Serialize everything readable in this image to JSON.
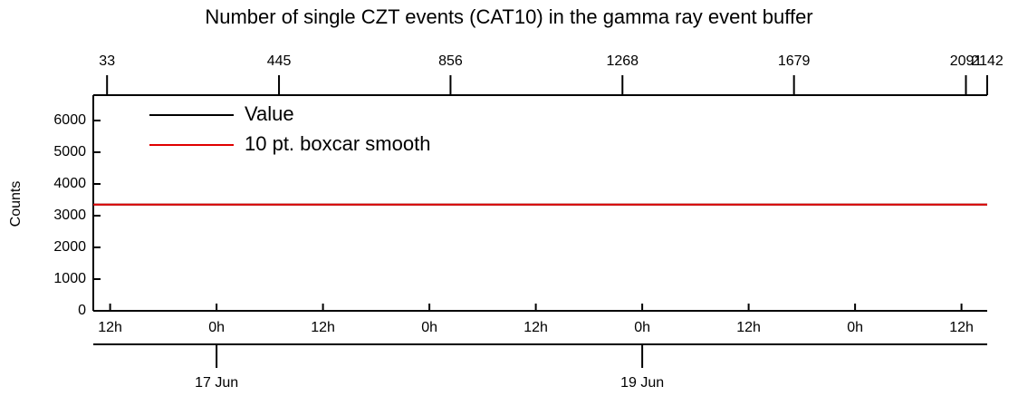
{
  "chart_data": {
    "type": "line",
    "title": "Number of single CZT events (CAT10) in the gamma ray event buffer",
    "ylabel": "Counts",
    "ylim": [
      0,
      6800
    ],
    "yticks": [
      0,
      1000,
      2000,
      3000,
      4000,
      5000,
      6000
    ],
    "xlim": [
      "06-16 10:06",
      "06-20 14:54"
    ],
    "xticks": [
      {
        "value": "06-16 12:00",
        "label": "12h"
      },
      {
        "value": "06-17 00:00",
        "label": "0h"
      },
      {
        "value": "06-17 12:00",
        "label": "12h"
      },
      {
        "value": "06-18 00:00",
        "label": "0h"
      },
      {
        "value": "06-18 12:00",
        "label": "12h"
      },
      {
        "value": "06-19 00:00",
        "label": "0h"
      },
      {
        "value": "06-19 12:00",
        "label": "12h"
      },
      {
        "value": "06-20 00:00",
        "label": "0h"
      },
      {
        "value": "06-20 12:00",
        "label": "12h"
      }
    ],
    "date_ticks": [
      {
        "value": "06-17 00:00",
        "label": "17 Jun"
      },
      {
        "value": "06-19 00:00",
        "label": "19 Jun"
      }
    ],
    "x2lim": [
      0,
      2142
    ],
    "x2ticks": [
      33,
      445,
      856,
      1268,
      1679,
      2091,
      2142
    ],
    "x": [
      "06-16 10:06",
      "06-20 14:54"
    ],
    "series": [
      {
        "name": "Value",
        "color": "#000000",
        "values": [
          3350,
          3350
        ]
      },
      {
        "name": "10 pt. boxcar smooth",
        "color": "#e00000",
        "values": [
          3350,
          3350
        ]
      }
    ]
  }
}
